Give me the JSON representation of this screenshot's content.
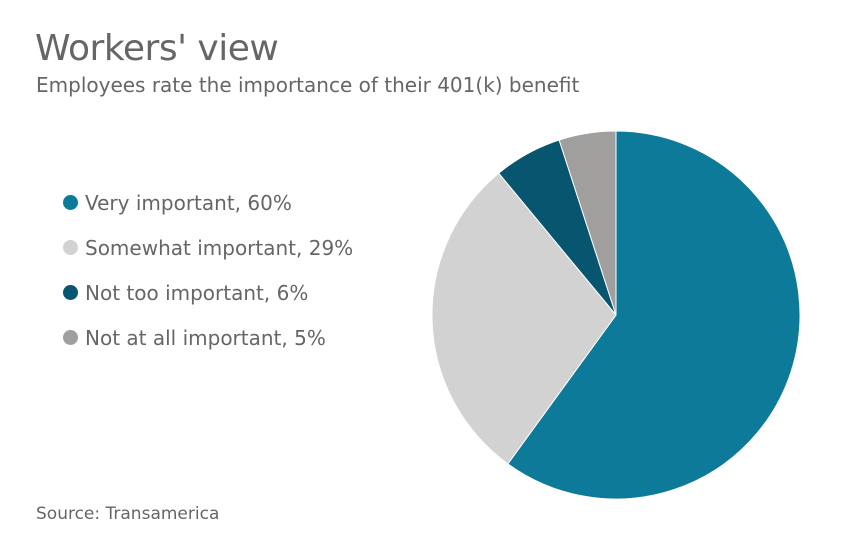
{
  "chart_data": {
    "type": "pie",
    "title": "Workers' view",
    "subtitle": "Employees rate the importance of their 401(k) benefit",
    "categories": [
      "Very important",
      "Somewhat important",
      "Not too important",
      "Not at all important"
    ],
    "values": [
      60,
      29,
      6,
      5
    ],
    "unit": "%",
    "colors": [
      "#0e7a99",
      "#d3d2d3",
      "#07556f",
      "#a09f9e"
    ],
    "legend_position": "left",
    "start_angle": "top, clockwise",
    "source": "Source: Transamerica"
  }
}
